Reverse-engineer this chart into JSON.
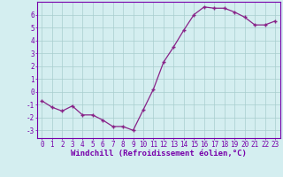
{
  "x": [
    0,
    1,
    2,
    3,
    4,
    5,
    6,
    7,
    8,
    9,
    10,
    11,
    12,
    13,
    14,
    15,
    16,
    17,
    18,
    19,
    20,
    21,
    22,
    23
  ],
  "y": [
    -0.7,
    -1.2,
    -1.5,
    -1.1,
    -1.8,
    -1.8,
    -2.2,
    -2.7,
    -2.7,
    -3.0,
    -1.4,
    0.2,
    2.3,
    3.5,
    4.8,
    6.0,
    6.6,
    6.5,
    6.5,
    6.2,
    5.8,
    5.2,
    5.2,
    5.5
  ],
  "line_color": "#882288",
  "marker": "+",
  "bg_color": "#d4eef0",
  "grid_color": "#a8cece",
  "xlabel": "Windchill (Refroidissement éolien,°C)",
  "xlim": [
    -0.5,
    23.5
  ],
  "ylim": [
    -3.6,
    7.0
  ],
  "yticks": [
    -3,
    -2,
    -1,
    0,
    1,
    2,
    3,
    4,
    5,
    6
  ],
  "xticks": [
    0,
    1,
    2,
    3,
    4,
    5,
    6,
    7,
    8,
    9,
    10,
    11,
    12,
    13,
    14,
    15,
    16,
    17,
    18,
    19,
    20,
    21,
    22,
    23
  ],
  "tick_label_fontsize": 5.5,
  "xlabel_fontsize": 6.5,
  "line_width": 0.9,
  "marker_size": 3.5,
  "spine_color": "#7700aa"
}
